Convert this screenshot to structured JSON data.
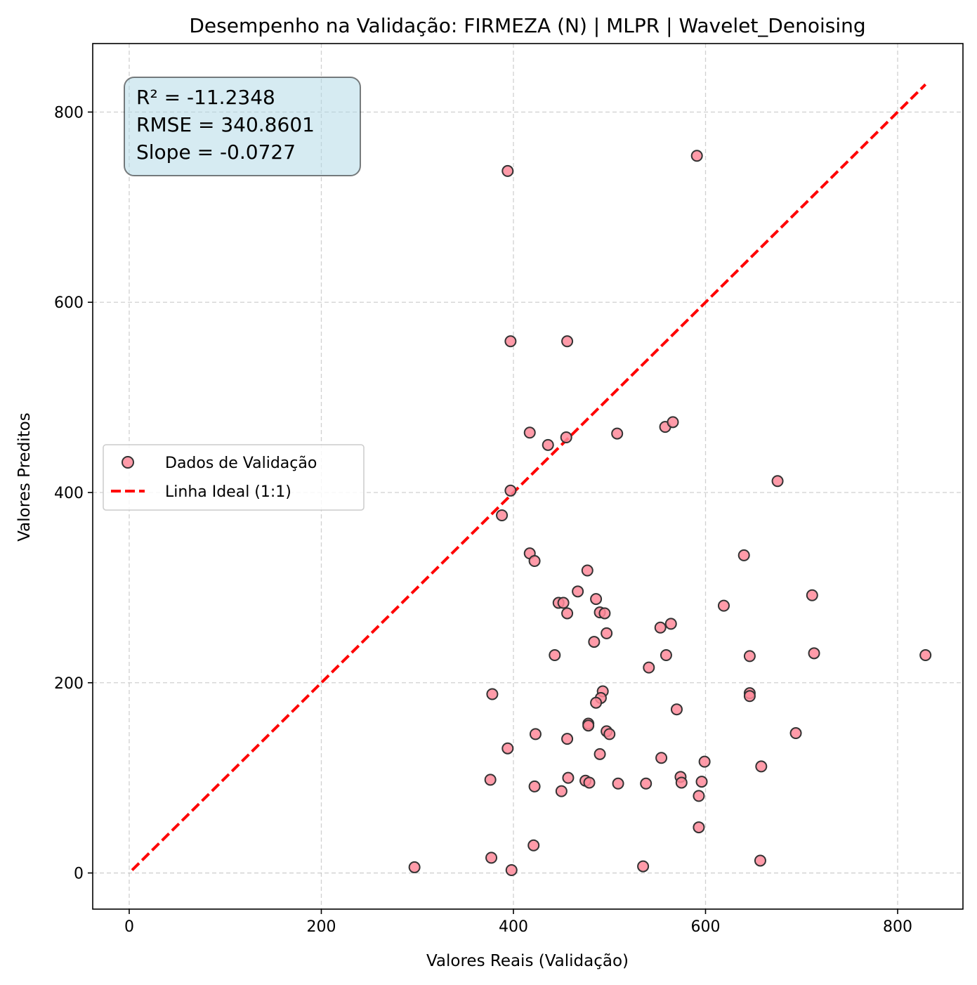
{
  "chart_data": {
    "type": "scatter",
    "title": "Desempenho na Validação: FIRMEZA (N) | MLPR | Wavelet_Denoising",
    "xlabel": "Valores Reais (Validação)",
    "ylabel": "Valores Preditos",
    "xlim": [
      -38,
      868
    ],
    "ylim": [
      -38,
      872
    ],
    "xticks": [
      0,
      200,
      400,
      600,
      800
    ],
    "yticks": [
      0,
      200,
      400,
      600,
      800
    ],
    "grid": true,
    "legend_position": "center-left",
    "stats": {
      "r2": "R² = -11.2348",
      "rmse": "RMSE = 340.8601",
      "slope": "Slope = -0.0727"
    },
    "series": [
      {
        "name": "Dados de Validação",
        "kind": "scatter",
        "color": "#ff8a9a",
        "edge_color": "#333333",
        "points": [
          [
            394,
            738
          ],
          [
            591,
            754
          ],
          [
            397,
            559
          ],
          [
            456,
            559
          ],
          [
            417,
            463
          ],
          [
            436,
            450
          ],
          [
            455,
            458
          ],
          [
            508,
            462
          ],
          [
            558,
            469
          ],
          [
            566,
            474
          ],
          [
            675,
            412
          ],
          [
            397,
            402
          ],
          [
            388,
            376
          ],
          [
            417,
            336
          ],
          [
            422,
            328
          ],
          [
            477,
            318
          ],
          [
            640,
            334
          ],
          [
            467,
            296
          ],
          [
            447,
            284
          ],
          [
            452,
            284
          ],
          [
            456,
            273
          ],
          [
            486,
            288
          ],
          [
            490,
            274
          ],
          [
            495,
            273
          ],
          [
            497,
            252
          ],
          [
            484,
            243
          ],
          [
            553,
            258
          ],
          [
            564,
            262
          ],
          [
            619,
            281
          ],
          [
            711,
            292
          ],
          [
            713,
            231
          ],
          [
            646,
            228
          ],
          [
            443,
            229
          ],
          [
            541,
            216
          ],
          [
            559,
            229
          ],
          [
            829,
            229
          ],
          [
            378,
            188
          ],
          [
            493,
            191
          ],
          [
            491,
            184
          ],
          [
            486,
            179
          ],
          [
            570,
            172
          ],
          [
            646,
            189
          ],
          [
            646,
            186
          ],
          [
            478,
            157
          ],
          [
            478,
            155
          ],
          [
            497,
            149
          ],
          [
            500,
            146
          ],
          [
            423,
            146
          ],
          [
            456,
            141
          ],
          [
            394,
            131
          ],
          [
            490,
            125
          ],
          [
            554,
            121
          ],
          [
            599,
            117
          ],
          [
            658,
            112
          ],
          [
            694,
            147
          ],
          [
            376,
            98
          ],
          [
            457,
            100
          ],
          [
            475,
            97
          ],
          [
            479,
            95
          ],
          [
            509,
            94
          ],
          [
            538,
            94
          ],
          [
            574,
            101
          ],
          [
            575,
            95
          ],
          [
            596,
            96
          ],
          [
            593,
            81
          ],
          [
            422,
            91
          ],
          [
            450,
            86
          ],
          [
            593,
            48
          ],
          [
            421,
            29
          ],
          [
            377,
            16
          ],
          [
            297,
            6
          ],
          [
            398,
            3
          ],
          [
            535,
            7
          ],
          [
            657,
            13
          ]
        ]
      },
      {
        "name": "Linha Ideal (1:1)",
        "kind": "line",
        "color": "#ff0000",
        "dash": "dashed",
        "x": [
          3,
          829
        ],
        "y": [
          3,
          829
        ]
      }
    ]
  }
}
